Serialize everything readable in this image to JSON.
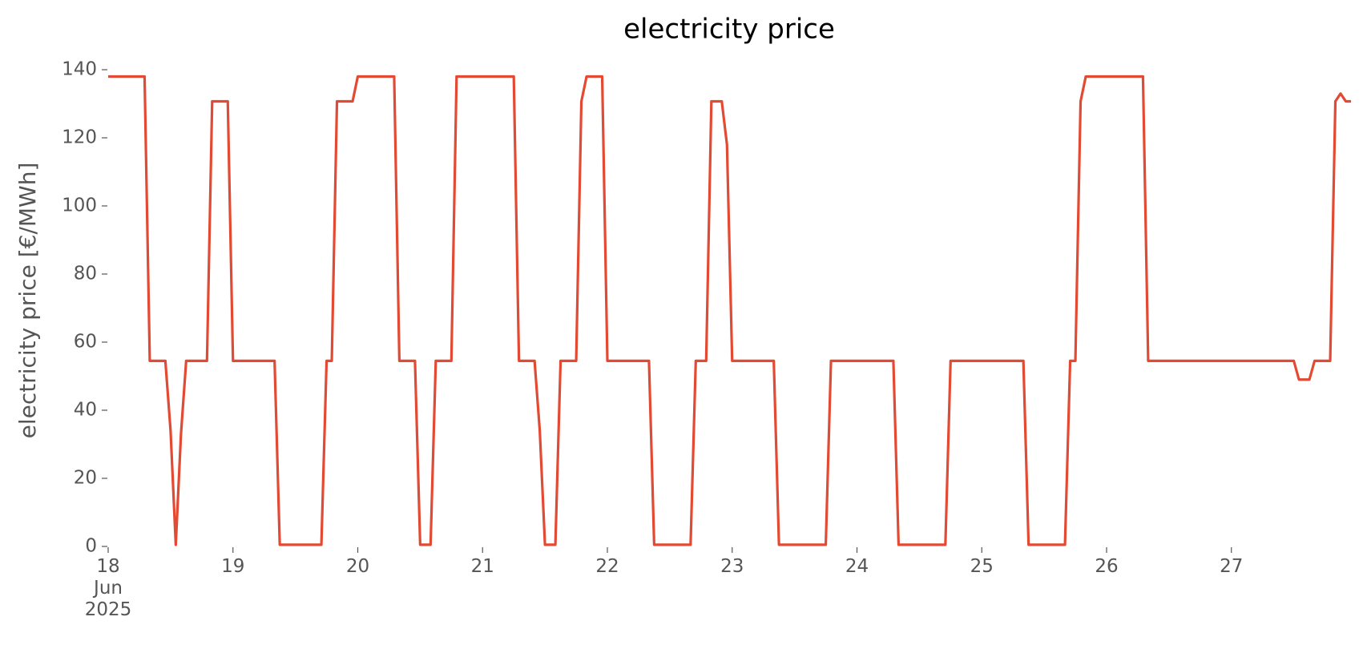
{
  "chart_data": {
    "type": "line",
    "title": "electricity price",
    "ylabel": "electricity price [€/MWh]",
    "color": "#e24a33",
    "x": [
      "2025-06-18T00:00",
      "2025-06-18T07:00",
      "2025-06-18T08:00",
      "2025-06-18T11:00",
      "2025-06-18T12:00",
      "2025-06-18T13:00",
      "2025-06-18T14:00",
      "2025-06-18T15:00",
      "2025-06-18T19:00",
      "2025-06-18T20:00",
      "2025-06-18T23:00",
      "2025-06-19T00:00",
      "2025-06-19T08:00",
      "2025-06-19T09:00",
      "2025-06-19T17:00",
      "2025-06-19T18:00",
      "2025-06-19T19:00",
      "2025-06-19T20:00",
      "2025-06-19T23:00",
      "2025-06-20T00:00",
      "2025-06-20T07:00",
      "2025-06-20T08:00",
      "2025-06-20T11:00",
      "2025-06-20T12:00",
      "2025-06-20T14:00",
      "2025-06-20T15:00",
      "2025-06-20T18:00",
      "2025-06-20T19:00",
      "2025-06-21T06:00",
      "2025-06-21T07:00",
      "2025-06-21T10:00",
      "2025-06-21T11:00",
      "2025-06-21T12:00",
      "2025-06-21T14:00",
      "2025-06-21T15:00",
      "2025-06-21T18:00",
      "2025-06-21T19:00",
      "2025-06-21T20:00",
      "2025-06-21T23:00",
      "2025-06-22T00:00",
      "2025-06-22T08:00",
      "2025-06-22T09:00",
      "2025-06-22T16:00",
      "2025-06-22T17:00",
      "2025-06-22T19:00",
      "2025-06-22T20:00",
      "2025-06-22T22:00",
      "2025-06-22T23:00",
      "2025-06-23T00:00",
      "2025-06-23T08:00",
      "2025-06-23T09:00",
      "2025-06-23T18:00",
      "2025-06-23T19:00",
      "2025-06-24T07:00",
      "2025-06-24T08:00",
      "2025-06-24T17:00",
      "2025-06-24T18:00",
      "2025-06-25T08:00",
      "2025-06-25T09:00",
      "2025-06-25T16:00",
      "2025-06-25T17:00",
      "2025-06-25T18:00",
      "2025-06-25T19:00",
      "2025-06-25T20:00",
      "2025-06-26T07:00",
      "2025-06-26T08:00",
      "2025-06-27T12:00",
      "2025-06-27T13:00",
      "2025-06-27T15:00",
      "2025-06-27T16:00",
      "2025-06-27T19:00",
      "2025-06-27T20:00",
      "2025-06-27T21:00",
      "2025-06-27T22:00",
      "2025-06-27T23:00"
    ],
    "values": [
      138,
      138,
      54.5,
      54.5,
      34,
      0.5,
      33,
      54.5,
      54.5,
      130.7,
      130.7,
      54.5,
      54.5,
      0.5,
      0.5,
      54.5,
      54.5,
      130.7,
      130.7,
      138,
      138,
      54.5,
      54.5,
      0.5,
      0.5,
      54.5,
      54.5,
      138,
      138,
      54.5,
      54.5,
      34,
      0.5,
      0.5,
      54.5,
      54.5,
      130.7,
      138,
      138,
      54.5,
      54.5,
      0.5,
      0.5,
      54.5,
      54.5,
      130.7,
      130.7,
      118,
      54.5,
      54.5,
      0.5,
      0.5,
      54.5,
      54.5,
      0.5,
      0.5,
      54.5,
      54.5,
      0.5,
      0.5,
      54.5,
      54.5,
      130.7,
      138,
      138,
      54.5,
      54.5,
      49,
      49,
      54.5,
      54.5,
      130.7,
      133,
      130.7,
      130.7
    ],
    "xlim": [
      "2025-06-18T00:00",
      "2025-06-27T23:00"
    ],
    "xticks": [
      {
        "value": "2025-06-18",
        "label": "18\nJun\n2025"
      },
      {
        "value": "2025-06-19",
        "label": "19"
      },
      {
        "value": "2025-06-20",
        "label": "20"
      },
      {
        "value": "2025-06-21",
        "label": "21"
      },
      {
        "value": "2025-06-22",
        "label": "22"
      },
      {
        "value": "2025-06-23",
        "label": "23"
      },
      {
        "value": "2025-06-24",
        "label": "24"
      },
      {
        "value": "2025-06-25",
        "label": "25"
      },
      {
        "value": "2025-06-26",
        "label": "26"
      },
      {
        "value": "2025-06-27",
        "label": "27"
      }
    ],
    "ylim": [
      0,
      140
    ],
    "yticks": [
      0,
      20,
      40,
      60,
      80,
      100,
      120,
      140
    ],
    "grid": false
  }
}
